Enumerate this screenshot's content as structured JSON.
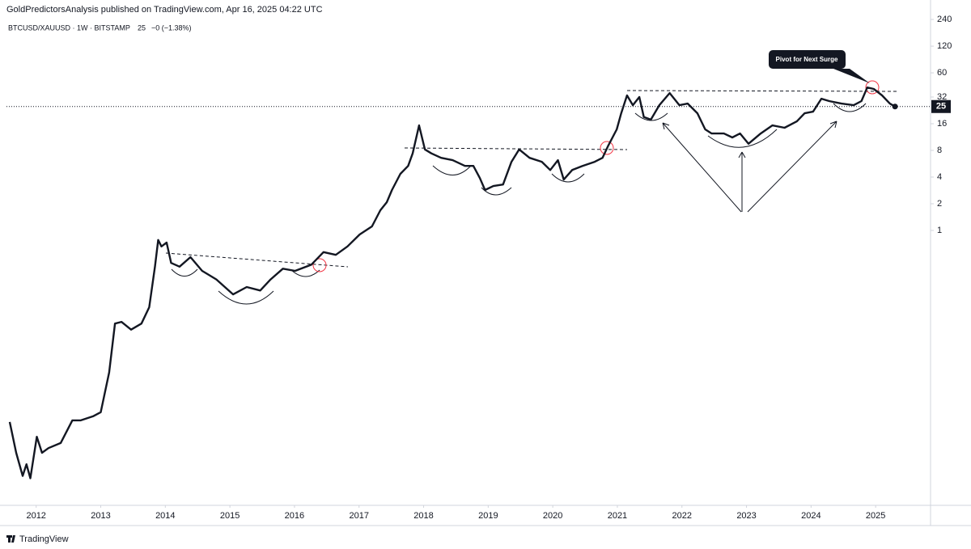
{
  "header": "GoldPredictorsAnalysis published on TradingView.com, Apr 16, 2025 04:22 UTC",
  "brand": "TradingView",
  "chart_data": {
    "type": "line",
    "symbol": "BTCUSD/XAUUSD · 1W · BITSTAMP",
    "last_value": 25,
    "change": "−0 (−1.38%)",
    "annotation": "Pivot for Next Surge",
    "color": "#131722",
    "log_scale": true,
    "grid": false,
    "xlim": [
      2011.54,
      2025.85
    ],
    "xticks": [
      2012,
      2013,
      2014,
      2015,
      2016,
      2017,
      2018,
      2019,
      2020,
      2021,
      2022,
      2023,
      2024,
      2025
    ],
    "ylim": [
      0.00085,
      340
    ],
    "yticks": [
      1,
      2,
      4,
      8,
      16,
      32,
      60,
      120,
      240
    ],
    "x": [
      2011.59,
      2011.69,
      2011.79,
      2011.85,
      2011.91,
      2012.01,
      2012.09,
      2012.19,
      2012.38,
      2012.56,
      2012.69,
      2012.88,
      2013.0,
      2013.13,
      2013.22,
      2013.32,
      2013.47,
      2013.63,
      2013.75,
      2013.84,
      2013.89,
      2013.94,
      2014.02,
      2014.09,
      2014.22,
      2014.39,
      2014.57,
      2014.79,
      2015.05,
      2015.26,
      2015.47,
      2015.63,
      2015.82,
      2016.01,
      2016.26,
      2016.45,
      2016.64,
      2016.82,
      2017.01,
      2017.2,
      2017.33,
      2017.43,
      2017.51,
      2017.64,
      2017.76,
      2017.83,
      2017.93,
      2018.02,
      2018.12,
      2018.27,
      2018.45,
      2018.64,
      2018.77,
      2018.87,
      2018.95,
      2019.08,
      2019.23,
      2019.36,
      2019.48,
      2019.64,
      2019.83,
      2019.96,
      2020.08,
      2020.17,
      2020.3,
      2020.46,
      2020.65,
      2020.77,
      2020.86,
      2020.99,
      2021.06,
      2021.15,
      2021.24,
      2021.34,
      2021.41,
      2021.52,
      2021.65,
      2021.81,
      2021.96,
      2022.09,
      2022.24,
      2022.36,
      2022.46,
      2022.65,
      2022.78,
      2022.9,
      2023.03,
      2023.22,
      2023.4,
      2023.59,
      2023.78,
      2023.9,
      2024.03,
      2024.16,
      2024.28,
      2024.47,
      2024.66,
      2024.78,
      2024.87,
      2024.97,
      2025.1,
      2025.22,
      2025.3
    ],
    "values": [
      0.0069,
      0.0031,
      0.0017,
      0.0023,
      0.0016,
      0.0047,
      0.0031,
      0.0035,
      0.004,
      0.0072,
      0.0072,
      0.008,
      0.0089,
      0.025,
      0.089,
      0.093,
      0.076,
      0.089,
      0.136,
      0.39,
      0.78,
      0.66,
      0.73,
      0.43,
      0.39,
      0.5,
      0.35,
      0.28,
      0.19,
      0.23,
      0.21,
      0.28,
      0.37,
      0.35,
      0.41,
      0.57,
      0.53,
      0.66,
      0.9,
      1.11,
      1.69,
      2.08,
      2.86,
      4.35,
      5.35,
      7.4,
      15.3,
      8.2,
      7.4,
      6.6,
      6.2,
      5.35,
      5.35,
      3.9,
      2.86,
      3.17,
      3.3,
      5.95,
      8.2,
      6.6,
      5.95,
      4.8,
      6.2,
      3.75,
      4.8,
      5.35,
      5.95,
      6.6,
      9.1,
      13.8,
      21,
      33.4,
      25.9,
      32,
      19,
      17.8,
      25.9,
      35.5,
      25.9,
      27,
      21,
      13.8,
      12.4,
      12.4,
      11.2,
      12.4,
      9.5,
      12.4,
      15.3,
      14.4,
      17,
      21,
      21.9,
      30.6,
      28.8,
      27,
      25.9,
      28.8,
      41,
      39.5,
      33.4,
      27,
      25
    ]
  }
}
